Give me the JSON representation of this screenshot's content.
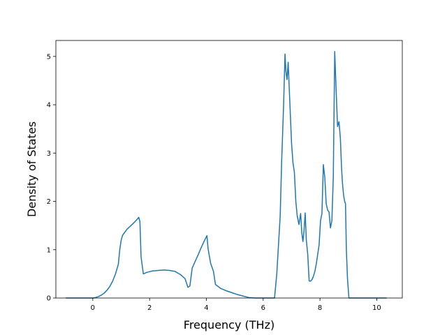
{
  "chart_data": {
    "type": "line",
    "title": "",
    "xlabel": "Frequency (THz)",
    "ylabel": "Density of States",
    "xlim": [
      -1.3,
      10.9
    ],
    "ylim": [
      0,
      5.33
    ],
    "xticks": [
      0,
      2,
      4,
      6,
      8,
      10
    ],
    "yticks": [
      0,
      1,
      2,
      3,
      4,
      5
    ],
    "grid": false,
    "legend": "none",
    "line_color": "#1f77b4",
    "series": [
      {
        "x": [
          -0.95,
          -0.5,
          0.0,
          0.1,
          0.2,
          0.3,
          0.4,
          0.5,
          0.6,
          0.7,
          0.8,
          0.9,
          0.95,
          1.0,
          1.05,
          1.2,
          1.4,
          1.55,
          1.62,
          1.66,
          1.7,
          1.78,
          1.9,
          2.1,
          2.3,
          2.5,
          2.7,
          2.9,
          3.1,
          3.25,
          3.35,
          3.42,
          3.5,
          3.6,
          3.7,
          3.8,
          3.9,
          4.02,
          4.06,
          4.15,
          4.25,
          4.32,
          4.5,
          4.7,
          4.9,
          5.1,
          5.3,
          5.5,
          5.7,
          5.9,
          6.1,
          6.4,
          6.48,
          6.53,
          6.6,
          6.65,
          6.72,
          6.77,
          6.8,
          6.84,
          6.88,
          6.9,
          6.95,
          7.0,
          7.05,
          7.1,
          7.15,
          7.2,
          7.26,
          7.32,
          7.36,
          7.4,
          7.44,
          7.48,
          7.52,
          7.57,
          7.62,
          7.67,
          7.72,
          7.77,
          7.82,
          7.87,
          7.92,
          7.97,
          8.02,
          8.07,
          8.12,
          8.17,
          8.22,
          8.27,
          8.32,
          8.37,
          8.42,
          8.47,
          8.52,
          8.57,
          8.62,
          8.67,
          8.72,
          8.76,
          8.79,
          8.82,
          8.84,
          8.87,
          8.9,
          8.93,
          8.97,
          9.02,
          9.07,
          9.12,
          9.17,
          9.22,
          9.27,
          9.32,
          9.37,
          9.42,
          9.5,
          9.7,
          10.0,
          10.35
        ],
        "y": [
          0,
          0,
          0,
          0.01,
          0.03,
          0.06,
          0.1,
          0.16,
          0.24,
          0.35,
          0.5,
          0.7,
          1.0,
          1.2,
          1.3,
          1.42,
          1.53,
          1.62,
          1.67,
          1.58,
          0.85,
          0.5,
          0.53,
          0.56,
          0.57,
          0.58,
          0.57,
          0.55,
          0.48,
          0.4,
          0.22,
          0.25,
          0.62,
          0.75,
          0.88,
          1.02,
          1.15,
          1.29,
          1.02,
          0.72,
          0.55,
          0.28,
          0.2,
          0.15,
          0.11,
          0.07,
          0.04,
          0.01,
          0,
          0,
          0,
          0,
          0.5,
          1.0,
          1.7,
          2.8,
          4.0,
          5.05,
          4.7,
          4.52,
          4.88,
          4.6,
          3.9,
          3.2,
          2.8,
          2.6,
          2.0,
          1.7,
          1.52,
          1.75,
          1.35,
          1.17,
          1.4,
          1.76,
          1.2,
          0.9,
          0.35,
          0.35,
          0.38,
          0.45,
          0.55,
          0.7,
          0.9,
          1.1,
          1.6,
          1.75,
          2.76,
          2.5,
          1.95,
          1.82,
          1.78,
          1.45,
          1.6,
          2.5,
          5.1,
          4.3,
          3.55,
          3.65,
          3.3,
          2.7,
          2.4,
          2.2,
          2.1,
          2.0,
          1.95,
          1.0,
          0.4,
          0.0,
          0.0,
          0.0,
          0.0,
          0.0,
          0.0,
          0.0,
          0.0,
          0.0,
          0.0,
          0.0,
          0.0,
          0.0
        ]
      }
    ]
  }
}
